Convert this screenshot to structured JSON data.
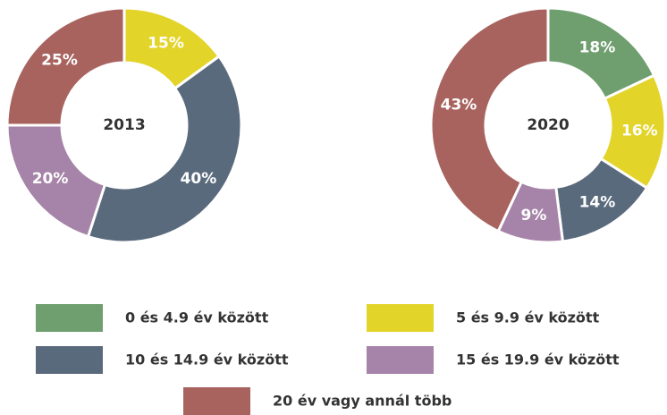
{
  "chart_data": [
    {
      "type": "pie",
      "title": "2013",
      "categories": [
        "5 és 9.9 év között",
        "10 és 14.9 év között",
        "15 és 19.9 év között",
        "20 év vagy annál több"
      ],
      "values": [
        15,
        40,
        20,
        25
      ],
      "value_labels": [
        "15%",
        "40%",
        "20%",
        "25%"
      ],
      "colors": [
        "#e3d42a",
        "#5a6a7d",
        "#a683a8",
        "#a8635f"
      ]
    },
    {
      "type": "pie",
      "title": "2020",
      "categories": [
        "0 és 4.9 év között",
        "5 és 9.9 év között",
        "10 és 14.9 év között",
        "15 és 19.9 év között",
        "20 év vagy annál több"
      ],
      "values": [
        18,
        16,
        14,
        9,
        43
      ],
      "value_labels": [
        "18%",
        "16%",
        "14%",
        "9%",
        "43%"
      ],
      "colors": [
        "#6f9e6f",
        "#e3d42a",
        "#5a6a7d",
        "#a683a8",
        "#a8635f"
      ]
    }
  ]
}
